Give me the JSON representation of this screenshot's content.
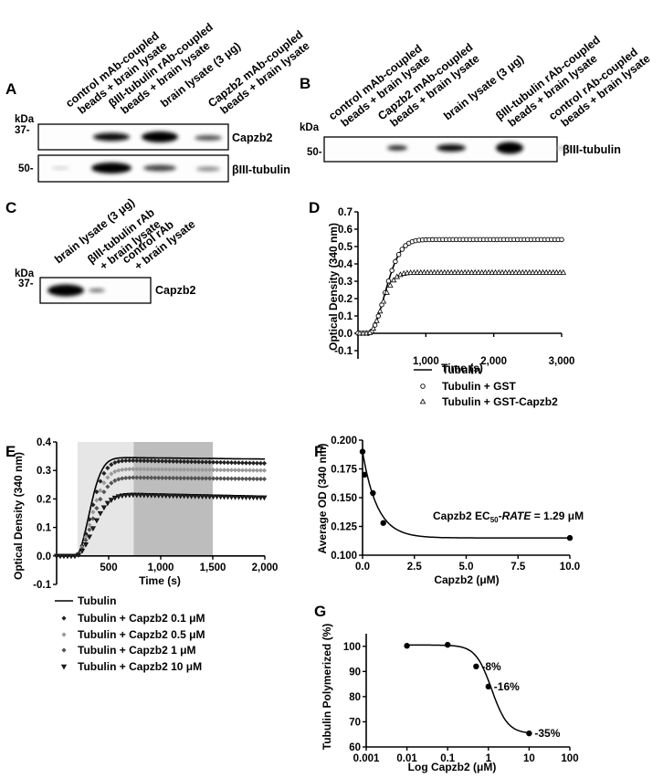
{
  "panels": {
    "A": {
      "letter": "A",
      "kda": "kDa",
      "lanes": [
        "control mAb-coupled beads + brain lysate",
        "βIII-tubulin rAb-coupled beads + brain lysate",
        "brain lysate (3 μg)",
        "Capzb2 mAb-coupled beads + brain lysate"
      ],
      "lane_lines": [
        [
          "control mAb-coupled",
          "beads + brain lysate"
        ],
        [
          "βIII-tubulin rAb-coupled",
          "beads + brain lysate"
        ],
        [
          "brain lysate (3 μg)"
        ],
        [
          "Capzb2 mAb-coupled",
          "beads + brain lysate"
        ]
      ],
      "blot1": {
        "marker": "37-",
        "protein": "Capzb2"
      },
      "blot2": {
        "marker": "50-",
        "protein": "βIII-tubulin"
      }
    },
    "B": {
      "letter": "B",
      "kda": "kDa",
      "lane_lines": [
        [
          "control mAb-coupled",
          "beads + brain lysate"
        ],
        [
          "Capzb2 mAb-coupled",
          "beads + brain lysate"
        ],
        [
          "brain lysate (3 μg)"
        ],
        [
          "βIII-tubulin rAb-coupled",
          "beads + brain lysate"
        ],
        [
          "control rAb-coupled",
          "beads + brain lysate"
        ]
      ],
      "blot": {
        "marker": "50-",
        "protein": "βIII-tubulin"
      }
    },
    "C": {
      "letter": "C",
      "kda": "kDa",
      "lane_lines": [
        [
          "brain lysate (3 μg)"
        ],
        [
          "βIII-tubulin rAb",
          "+ brain lysate"
        ],
        [
          "control rAb",
          "+ brain lysate"
        ]
      ],
      "blot": {
        "marker": "37-",
        "protein": "Capzb2"
      }
    },
    "D": {
      "letter": "D"
    },
    "E": {
      "letter": "E"
    },
    "F": {
      "letter": "F"
    },
    "G": {
      "letter": "G"
    }
  },
  "chart_data": [
    {
      "id": "D",
      "type": "line",
      "xlabel": "Time (s)",
      "ylabel": "Optical Density (340 nm)",
      "xlim": [
        0,
        3000
      ],
      "ylim": [
        -0.1,
        0.7
      ],
      "xticks": [
        1000,
        2000,
        3000
      ],
      "xtick_labels": [
        "1,000",
        "2,000",
        "3,000"
      ],
      "yticks": [
        -0.1,
        0.0,
        0.1,
        0.2,
        0.3,
        0.4,
        0.5,
        0.6,
        0.7
      ],
      "ytick_labels": [
        "-0.1",
        "0.0",
        "0.1",
        "0.2",
        "0.3",
        "0.4",
        "0.5",
        "0.6",
        "0.7"
      ],
      "legend_position": "below",
      "series": [
        {
          "name": "Tubulin",
          "marker": "line",
          "plateau": 0.54,
          "lag": 150,
          "tau": 420
        },
        {
          "name": "Tubulin + GST",
          "marker": "circle",
          "plateau": 0.54,
          "lag": 150,
          "tau": 420
        },
        {
          "name": "Tubulin + GST-Capzb2",
          "marker": "triangle",
          "plateau": 0.35,
          "lag": 150,
          "tau": 330
        }
      ]
    },
    {
      "id": "E",
      "type": "line",
      "xlabel": "Time (s)",
      "ylabel": "Optical Density (340 nm)",
      "xlim": [
        0,
        2000
      ],
      "ylim": [
        -0.1,
        0.4
      ],
      "xticks": [
        500,
        1000,
        1500,
        2000
      ],
      "xtick_labels": [
        "500",
        "1,000",
        "1,500",
        "2,000"
      ],
      "yticks": [
        -0.1,
        0.0,
        0.1,
        0.2,
        0.3,
        0.4
      ],
      "ytick_labels": [
        "-0.1",
        "0.0",
        "0.1",
        "0.2",
        "0.3",
        "0.4"
      ],
      "shaded_regions": [
        {
          "x": [
            200,
            740
          ],
          "shade": "light"
        },
        {
          "x": [
            740,
            1500
          ],
          "shade": "dark"
        }
      ],
      "legend_position": "below",
      "series": [
        {
          "name": "Tubulin",
          "marker": "line",
          "plateau": 0.34,
          "peak": 0.345,
          "lag": 180,
          "tau": 210
        },
        {
          "name": "Tubulin + Capzb2 0.1 μM",
          "marker": "diamond-dark",
          "plateau": 0.325,
          "peak": 0.335,
          "lag": 180,
          "tau": 230
        },
        {
          "name": "Tubulin + Capzb2 0.5 μM",
          "marker": "diamond-light",
          "plateau": 0.3,
          "peak": 0.305,
          "lag": 180,
          "tau": 240
        },
        {
          "name": "Tubulin + Capzb2 1 μM",
          "marker": "diamond-mid",
          "plateau": 0.27,
          "peak": 0.275,
          "lag": 180,
          "tau": 250
        },
        {
          "name": "Tubulin + Capzb2 10 μM",
          "marker": "triangle-down",
          "plateau": 0.205,
          "peak": 0.215,
          "lag": 180,
          "tau": 260
        }
      ]
    },
    {
      "id": "F",
      "type": "scatter",
      "xlabel": "Capzb2 (μM)",
      "ylabel": "Average OD (340 nm)",
      "xlim": [
        0,
        10
      ],
      "ylim": [
        0.1,
        0.2
      ],
      "xticks": [
        0.0,
        2.5,
        5.0,
        7.5,
        10.0
      ],
      "xtick_labels": [
        "0.0",
        "2.5",
        "5.0",
        "7.5",
        "10.0"
      ],
      "yticks": [
        0.1,
        0.125,
        0.15,
        0.175,
        0.2
      ],
      "ytick_labels": [
        "0.100",
        "0.125",
        "0.150",
        "0.175",
        "0.200"
      ],
      "points": [
        {
          "x": 0,
          "y": 0.19
        },
        {
          "x": 0.1,
          "y": 0.17
        },
        {
          "x": 0.5,
          "y": 0.154
        },
        {
          "x": 1,
          "y": 0.128
        },
        {
          "x": 10,
          "y": 0.115
        }
      ],
      "fit": {
        "bottom": 0.115,
        "top": 0.19,
        "ec50": 1.29
      },
      "annotation": {
        "prefix": "Capzb2 EC",
        "sub": "50",
        "middle": "-",
        "italic": "RATE",
        "suffix": " = 1.29 μM"
      }
    },
    {
      "id": "G",
      "type": "scatter",
      "xlabel": "Log Capzb2 (μM)",
      "ylabel": "Tubulin Polymerized (%)",
      "xscale": "log",
      "xlim": [
        0.001,
        100
      ],
      "ylim": [
        60,
        105
      ],
      "xticks": [
        0.001,
        0.01,
        0.1,
        1,
        10,
        100
      ],
      "xtick_labels": [
        "0.001",
        "0.01",
        "0.1",
        "1",
        "10",
        "100"
      ],
      "yticks": [
        60,
        70,
        80,
        90,
        100
      ],
      "ytick_labels": [
        "60",
        "70",
        "80",
        "90",
        "100"
      ],
      "points": [
        {
          "x": 0.01,
          "y": 100.2
        },
        {
          "x": 0.1,
          "y": 100.6
        },
        {
          "x": 0.5,
          "y": 92
        },
        {
          "x": 1,
          "y": 84
        },
        {
          "x": 10,
          "y": 65.4
        }
      ],
      "labels": [
        {
          "x": 0.5,
          "y": 92,
          "text": "-8%"
        },
        {
          "x": 1,
          "y": 84,
          "text": "-16%"
        },
        {
          "x": 10,
          "y": 65.4,
          "text": "-35%"
        }
      ],
      "fit": {
        "top": 100.5,
        "bottom": 65.3,
        "logec50": 0.08,
        "hill": 2.2
      }
    }
  ]
}
